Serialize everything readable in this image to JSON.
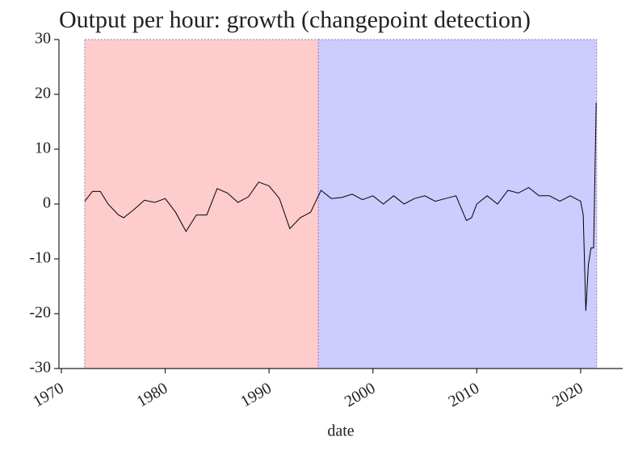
{
  "chart_data": {
    "type": "line",
    "title": "Output per hour: growth (changepoint detection)",
    "x_label": "date",
    "x": [
      1972.25,
      1973,
      1973.75,
      1974.5,
      1975.5,
      1976,
      1977,
      1978,
      1979,
      1980,
      1981,
      1982,
      1983,
      1984,
      1985,
      1986,
      1987,
      1988,
      1989,
      1990,
      1991,
      1992,
      1993,
      1994,
      1995,
      1996,
      1997,
      1998,
      1999,
      2000,
      2001,
      2002,
      2003,
      2004,
      2005,
      2006,
      2007,
      2008,
      2009,
      2009.5,
      2010,
      2011,
      2012,
      2013,
      2014,
      2015,
      2016,
      2017,
      2018,
      2019,
      2020,
      2020.25,
      2020.5,
      2020.75,
      2021,
      2021.25,
      2021.5
    ],
    "series": [
      {
        "color": "#000000",
        "values": [
          0.5,
          2.3,
          2.3,
          0,
          -2,
          -2.5,
          -1,
          0.7,
          0.3,
          1,
          -1.5,
          -5,
          -2,
          -2,
          2.8,
          2,
          0.3,
          1.3,
          4,
          3.3,
          1,
          -4.5,
          -2.5,
          -1.5,
          2.5,
          1,
          1.2,
          1.8,
          0.8,
          1.5,
          0,
          1.5,
          0,
          1,
          1.5,
          0.5,
          1,
          1.5,
          -3,
          -2.5,
          0,
          1.5,
          0,
          2.5,
          2,
          3,
          1.5,
          1.5,
          0.5,
          1.5,
          0.5,
          -2,
          -19.5,
          -11,
          -8,
          -8,
          18.5
        ]
      }
    ],
    "regions": [
      {
        "start": 1972.25,
        "end": 1994.75,
        "color": "#ffcccc"
      },
      {
        "start": 1994.75,
        "end": 2021.55,
        "color": "#ccccff"
      }
    ],
    "xlim": [
      1969.77,
      2024.05
    ],
    "xticks": [
      1970,
      1980,
      1990,
      2000,
      2010,
      2020
    ],
    "ylim": [
      -30,
      30
    ],
    "yticks": [
      -30,
      -20,
      -10,
      0,
      10,
      20,
      30
    ]
  }
}
